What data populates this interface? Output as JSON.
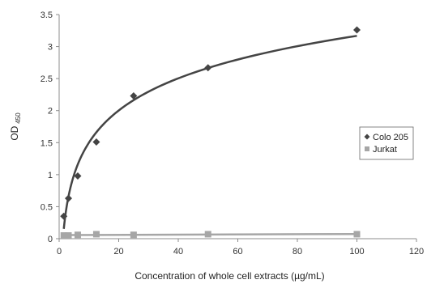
{
  "chart_data": {
    "type": "scatter",
    "xlabel": "Concentration of whole cell extracts (µg/mL)",
    "ylabel": "OD",
    "ylabel_subscript": "450",
    "xlim": [
      0,
      120
    ],
    "ylim": [
      0,
      3.5
    ],
    "x_ticks": [
      "0",
      "20",
      "40",
      "60",
      "80",
      "100",
      "120"
    ],
    "y_ticks": [
      "0",
      "0.5",
      "1",
      "1.5",
      "2",
      "2.5",
      "3",
      "3.5"
    ],
    "grid": false,
    "legend_position": "right",
    "series": [
      {
        "name": "Colo 205",
        "marker": "diamond",
        "color": "#444444",
        "x": [
          1.56,
          3.13,
          6.25,
          12.5,
          25,
          50,
          100
        ],
        "y": [
          0.35,
          0.63,
          0.98,
          1.51,
          2.23,
          2.67,
          3.26
        ],
        "trendline": "logarithmic"
      },
      {
        "name": "Jurkat",
        "marker": "square",
        "color": "#a6a6a6",
        "x": [
          1.56,
          3.13,
          6.25,
          12.5,
          25,
          50,
          100
        ],
        "y": [
          0.05,
          0.05,
          0.06,
          0.07,
          0.06,
          0.07,
          0.07
        ],
        "trendline": "linear"
      }
    ]
  }
}
